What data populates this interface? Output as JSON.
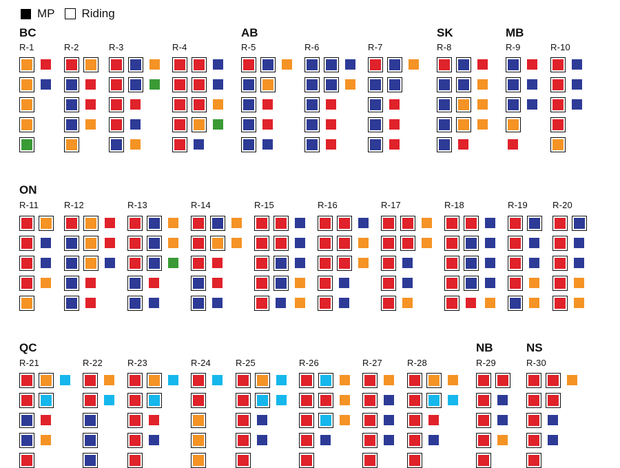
{
  "legend": {
    "mp_label": "MP",
    "riding_label": "Riding"
  },
  "colors": {
    "R": "#e0222a",
    "B": "#2d3b97",
    "O": "#f59325",
    "G": "#3a9a35",
    "C": "#15b7ec"
  },
  "provinces": [
    "BC",
    "AB",
    "SK",
    "MB",
    "ON",
    "QC",
    "NB",
    "NS"
  ],
  "ridings": [
    {
      "label": "R-1",
      "rows": [
        [
          "bO",
          "R"
        ],
        [
          "bO",
          "B"
        ],
        [
          "bO"
        ],
        [
          "bO"
        ],
        [
          "bG"
        ]
      ]
    },
    {
      "label": "R-2",
      "rows": [
        [
          "bR",
          "bO"
        ],
        [
          "bB",
          "R"
        ],
        [
          "bB",
          "R"
        ],
        [
          "bB",
          "O"
        ],
        [
          "bO"
        ]
      ]
    },
    {
      "label": "R-3",
      "rows": [
        [
          "bR",
          "bB",
          "O"
        ],
        [
          "bR",
          "bB",
          "G"
        ],
        [
          "bR",
          "R"
        ],
        [
          "bR",
          "B"
        ],
        [
          "bB",
          "O"
        ]
      ]
    },
    {
      "label": "R-4",
      "rows": [
        [
          "bR",
          "bR",
          "B"
        ],
        [
          "bR",
          "bR",
          "B"
        ],
        [
          "bR",
          "bR",
          "O"
        ],
        [
          "bR",
          "bO",
          "G"
        ],
        [
          "bR",
          "B"
        ]
      ]
    },
    {
      "label": "R-5",
      "rows": [
        [
          "bR",
          "bB",
          "O"
        ],
        [
          "bB",
          "bO"
        ],
        [
          "bB",
          "R"
        ],
        [
          "bB",
          "R"
        ],
        [
          "bB",
          "B"
        ]
      ]
    },
    {
      "label": "R-6",
      "rows": [
        [
          "bB",
          "bB",
          "B"
        ],
        [
          "bB",
          "bB",
          "O"
        ],
        [
          "bB",
          "R"
        ],
        [
          "bB",
          "R"
        ],
        [
          "bB",
          "R"
        ]
      ]
    },
    {
      "label": "R-7",
      "rows": [
        [
          "bR",
          "bB",
          "O"
        ],
        [
          "bB",
          "bB"
        ],
        [
          "bB",
          "R"
        ],
        [
          "bB",
          "R"
        ],
        [
          "bB",
          "R"
        ]
      ]
    },
    {
      "label": "R-8",
      "rows": [
        [
          "bR",
          "bB",
          "R"
        ],
        [
          "bB",
          "bB",
          "O"
        ],
        [
          "bB",
          "bO",
          "O"
        ],
        [
          "bB",
          "bO",
          "O"
        ],
        [
          "bB",
          "R"
        ]
      ]
    },
    {
      "label": "R-9",
      "rows": [
        [
          "bB",
          "R"
        ],
        [
          "bB",
          "B"
        ],
        [
          "bB",
          "B"
        ],
        [
          "bO"
        ],
        [
          "R"
        ]
      ]
    },
    {
      "label": "R-10",
      "rows": [
        [
          "bR",
          "B"
        ],
        [
          "bR",
          "B"
        ],
        [
          "bR",
          "B"
        ],
        [
          "bR"
        ],
        [
          "bO"
        ]
      ]
    },
    {
      "label": "R-11",
      "rows": [
        [
          "bR",
          "bO"
        ],
        [
          "bR",
          "B"
        ],
        [
          "bR",
          "B"
        ],
        [
          "bR",
          "O"
        ],
        [
          "bO"
        ]
      ]
    },
    {
      "label": "R-12",
      "rows": [
        [
          "bR",
          "bO",
          "R"
        ],
        [
          "bB",
          "bO",
          "R"
        ],
        [
          "bB",
          "bO",
          "B"
        ],
        [
          "bB",
          "R"
        ],
        [
          "bB",
          "R"
        ]
      ]
    },
    {
      "label": "R-13",
      "rows": [
        [
          "bR",
          "bB",
          "O"
        ],
        [
          "bR",
          "bB",
          "O"
        ],
        [
          "bR",
          "bB",
          "G"
        ],
        [
          "bB",
          "R"
        ],
        [
          "bB",
          "B"
        ]
      ]
    },
    {
      "label": "R-14",
      "rows": [
        [
          "bR",
          "bB",
          "O"
        ],
        [
          "bR",
          "bO",
          "O"
        ],
        [
          "bR",
          "R"
        ],
        [
          "bB",
          "R"
        ],
        [
          "bB",
          "B"
        ]
      ]
    },
    {
      "label": "R-15",
      "rows": [
        [
          "bR",
          "bR",
          "B"
        ],
        [
          "bR",
          "bR",
          "B"
        ],
        [
          "bR",
          "bB",
          "B"
        ],
        [
          "bR",
          "bB",
          "O"
        ],
        [
          "bR",
          "B",
          "O"
        ]
      ]
    },
    {
      "label": "R-16",
      "rows": [
        [
          "bR",
          "bR",
          "B"
        ],
        [
          "bR",
          "bR",
          "O"
        ],
        [
          "bR",
          "bR",
          "O"
        ],
        [
          "bR",
          "B"
        ],
        [
          "bR",
          "B"
        ]
      ]
    },
    {
      "label": "R-17",
      "rows": [
        [
          "bR",
          "bR",
          "O"
        ],
        [
          "bR",
          "bR",
          "O"
        ],
        [
          "bR",
          "B"
        ],
        [
          "bR",
          "B"
        ],
        [
          "bR",
          "O"
        ]
      ]
    },
    {
      "label": "R-18",
      "rows": [
        [
          "bR",
          "bR",
          "B"
        ],
        [
          "bR",
          "bB",
          "B"
        ],
        [
          "bR",
          "bB",
          "B"
        ],
        [
          "bR",
          "bB",
          "B"
        ],
        [
          "bR",
          "R",
          "O"
        ]
      ]
    },
    {
      "label": "R-19",
      "rows": [
        [
          "bR",
          "bB"
        ],
        [
          "bR",
          "B"
        ],
        [
          "bR",
          "B"
        ],
        [
          "bR",
          "O"
        ],
        [
          "bB",
          "O"
        ]
      ]
    },
    {
      "label": "R-20",
      "rows": [
        [
          "bR",
          "bB"
        ],
        [
          "bR",
          "B"
        ],
        [
          "bR",
          "B"
        ],
        [
          "bR",
          "O"
        ],
        [
          "bR",
          "O"
        ]
      ]
    },
    {
      "label": "R-21",
      "rows": [
        [
          "bR",
          "bO",
          "C"
        ],
        [
          "bR",
          "bC"
        ],
        [
          "bB",
          "R"
        ],
        [
          "bB",
          "O"
        ],
        [
          "bR"
        ]
      ]
    },
    {
      "label": "R-22",
      "rows": [
        [
          "bR",
          "O"
        ],
        [
          "bR",
          "C"
        ],
        [
          "bB"
        ],
        [
          "bB"
        ],
        [
          "bB"
        ]
      ]
    },
    {
      "label": "R-23",
      "rows": [
        [
          "bR",
          "bO",
          "C"
        ],
        [
          "bR",
          "bC"
        ],
        [
          "bR",
          "R"
        ],
        [
          "bR",
          "B"
        ],
        [
          "bR"
        ]
      ]
    },
    {
      "label": "R-24",
      "rows": [
        [
          "bR",
          "C"
        ],
        [
          "bR"
        ],
        [
          "bO"
        ],
        [
          "bO"
        ],
        [
          "bO"
        ]
      ]
    },
    {
      "label": "R-25",
      "rows": [
        [
          "bR",
          "bO",
          "C"
        ],
        [
          "bR",
          "bC",
          "C"
        ],
        [
          "bR",
          "B"
        ],
        [
          "bR",
          "B"
        ],
        [
          "bR"
        ]
      ]
    },
    {
      "label": "R-26",
      "rows": [
        [
          "bR",
          "bC",
          "O"
        ],
        [
          "bR",
          "bR",
          "O"
        ],
        [
          "bR",
          "bC",
          "O"
        ],
        [
          "bR",
          "B"
        ],
        [
          "bR"
        ]
      ]
    },
    {
      "label": "R-27",
      "rows": [
        [
          "bR",
          "O"
        ],
        [
          "bR",
          "B"
        ],
        [
          "bR",
          "B"
        ],
        [
          "bR",
          "B"
        ],
        [
          "bR"
        ]
      ]
    },
    {
      "label": "R-28",
      "rows": [
        [
          "bR",
          "bO",
          "O"
        ],
        [
          "bR",
          "bC",
          "C"
        ],
        [
          "bR",
          "R"
        ],
        [
          "bR",
          "B"
        ],
        [
          "bR"
        ]
      ]
    },
    {
      "label": "R-29",
      "rows": [
        [
          "bR",
          "bR"
        ],
        [
          "bR",
          "B"
        ],
        [
          "bR",
          "B"
        ],
        [
          "bR",
          "O"
        ],
        [
          "bR"
        ]
      ]
    },
    {
      "label": "R-30",
      "rows": [
        [
          "bR",
          "bR",
          "O"
        ],
        [
          "bR",
          "bR"
        ],
        [
          "bR",
          "B"
        ],
        [
          "bR",
          "B"
        ],
        [
          "bR"
        ]
      ]
    }
  ]
}
